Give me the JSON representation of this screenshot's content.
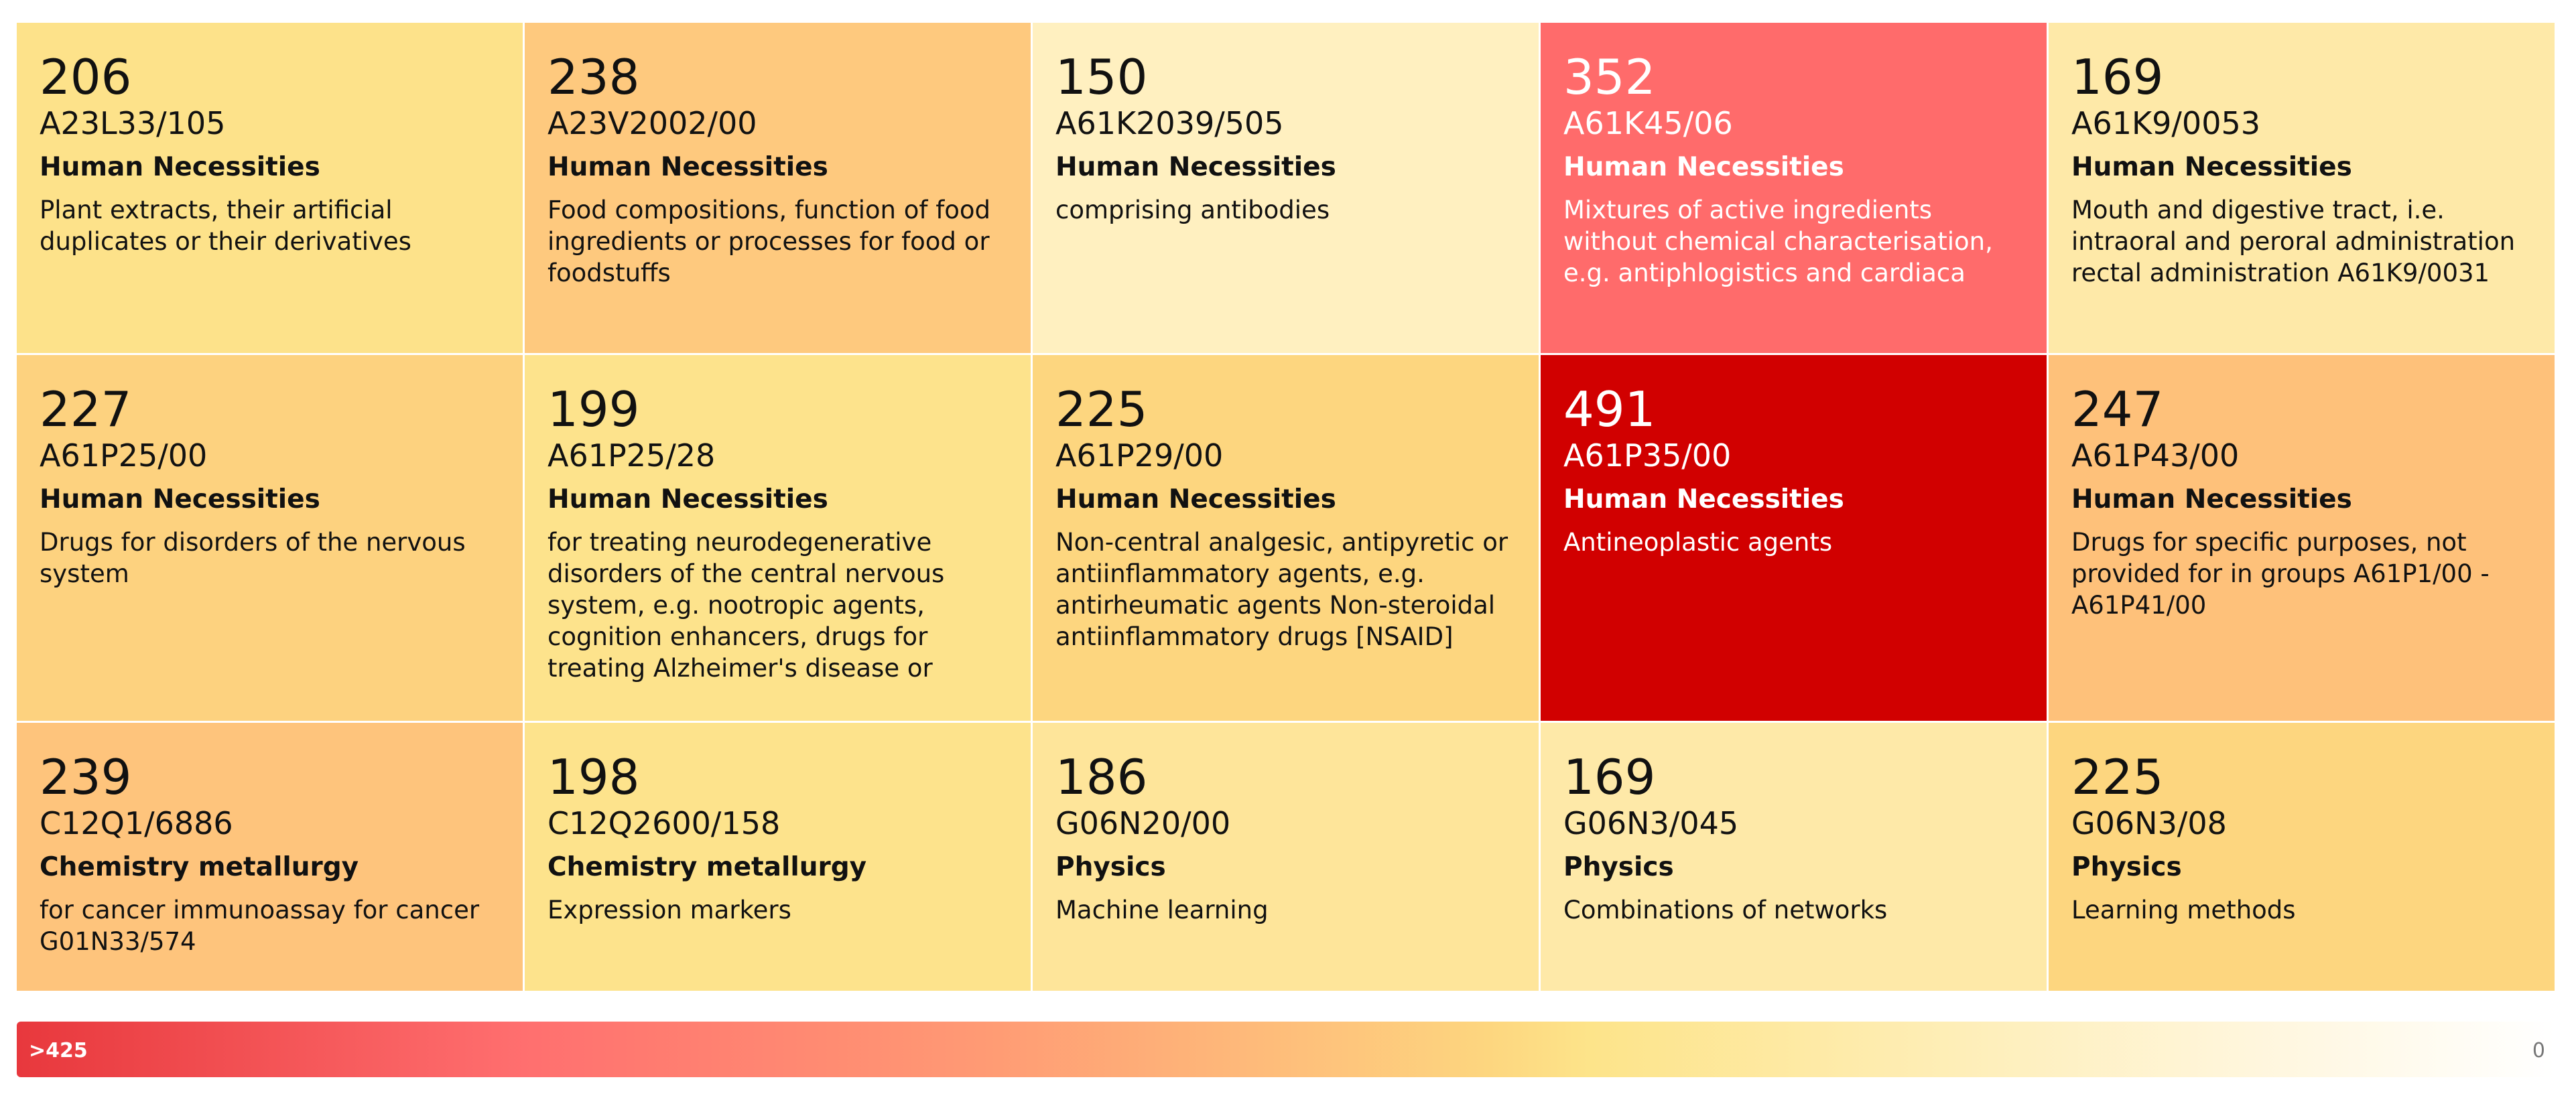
{
  "tiles": [
    {
      "count": "206",
      "code": "A23L33/105",
      "section": "Human Necessities",
      "description": "Plant extracts, their artificial duplicates or their derivatives",
      "color": "#fde28a",
      "text_color": "#111111"
    },
    {
      "count": "238",
      "code": "A23V2002/00",
      "section": "Human Necessities",
      "description": "Food compositions, function of food ingredients or processes for food or foodstuffs",
      "color": "#fec97e",
      "text_color": "#111111"
    },
    {
      "count": "150",
      "code": "A61K2039/505",
      "section": "Human Necessities",
      "description": "comprising antibodies",
      "color": "#fff0c0",
      "text_color": "#111111"
    },
    {
      "count": "352",
      "code": "A61K45/06",
      "section": "Human Necessities",
      "description": "Mixtures of active ingredients without chemical characterisation, e.g. antiphlogistics and cardiaca",
      "color": "#ff6b6b",
      "text_color": "#ffffff"
    },
    {
      "count": "169",
      "code": "A61K9/0053",
      "section": "Human Necessities",
      "description": "Mouth and digestive tract, i.e. intraoral and peroral administration rectal administration A61K9/0031",
      "color": "#fee9a8",
      "text_color": "#111111"
    },
    {
      "count": "227",
      "code": "A61P25/00",
      "section": "Human Necessities",
      "description": "Drugs for disorders of the nervous system",
      "color": "#fdd27f",
      "text_color": "#111111"
    },
    {
      "count": "199",
      "code": "A61P25/28",
      "section": "Human Necessities",
      "description": "for treating neurodegenerative disorders of the central nervous system, e.g. nootropic agents, cognition enhancers, drugs for treating Alzheimer's disease or",
      "color": "#fde38c",
      "text_color": "#111111"
    },
    {
      "count": "225",
      "code": "A61P29/00",
      "section": "Human Necessities",
      "description": "Non-central analgesic, antipyretic or antiinflammatory agents, e.g. antirheumatic agents Non-steroidal antiinflammatory drugs [NSAID]",
      "color": "#fdd67f",
      "text_color": "#111111"
    },
    {
      "count": "491",
      "code": "A61P35/00",
      "section": "Human Necessities",
      "description": "Antineoplastic agents",
      "color": "#d10000",
      "text_color": "#ffffff"
    },
    {
      "count": "247",
      "code": "A61P43/00",
      "section": "Human Necessities",
      "description": "Drugs for specific purposes, not provided for in groups A61P1/00 - A61P41/00",
      "color": "#fec17a",
      "text_color": "#111111"
    },
    {
      "count": "239",
      "code": "C12Q1/6886",
      "section": "Chemistry metallurgy",
      "description": "for cancer immunoassay for cancer G01N33/574",
      "color": "#fec47c",
      "text_color": "#111111"
    },
    {
      "count": "198",
      "code": "C12Q2600/158",
      "section": "Chemistry metallurgy",
      "description": "Expression markers",
      "color": "#fde38c",
      "text_color": "#111111"
    },
    {
      "count": "186",
      "code": "G06N20/00",
      "section": "Physics",
      "description": "Machine learning",
      "color": "#fee59a",
      "text_color": "#111111"
    },
    {
      "count": "169",
      "code": "G06N3/045",
      "section": "Physics",
      "description": "Combinations of networks",
      "color": "#fee9a8",
      "text_color": "#111111"
    },
    {
      "count": "225",
      "code": "G06N3/08",
      "section": "Physics",
      "description": "Learning methods",
      "color": "#fdd67f",
      "text_color": "#111111"
    }
  ],
  "legend": {
    "max_label": ">425",
    "min_label": "0"
  }
}
